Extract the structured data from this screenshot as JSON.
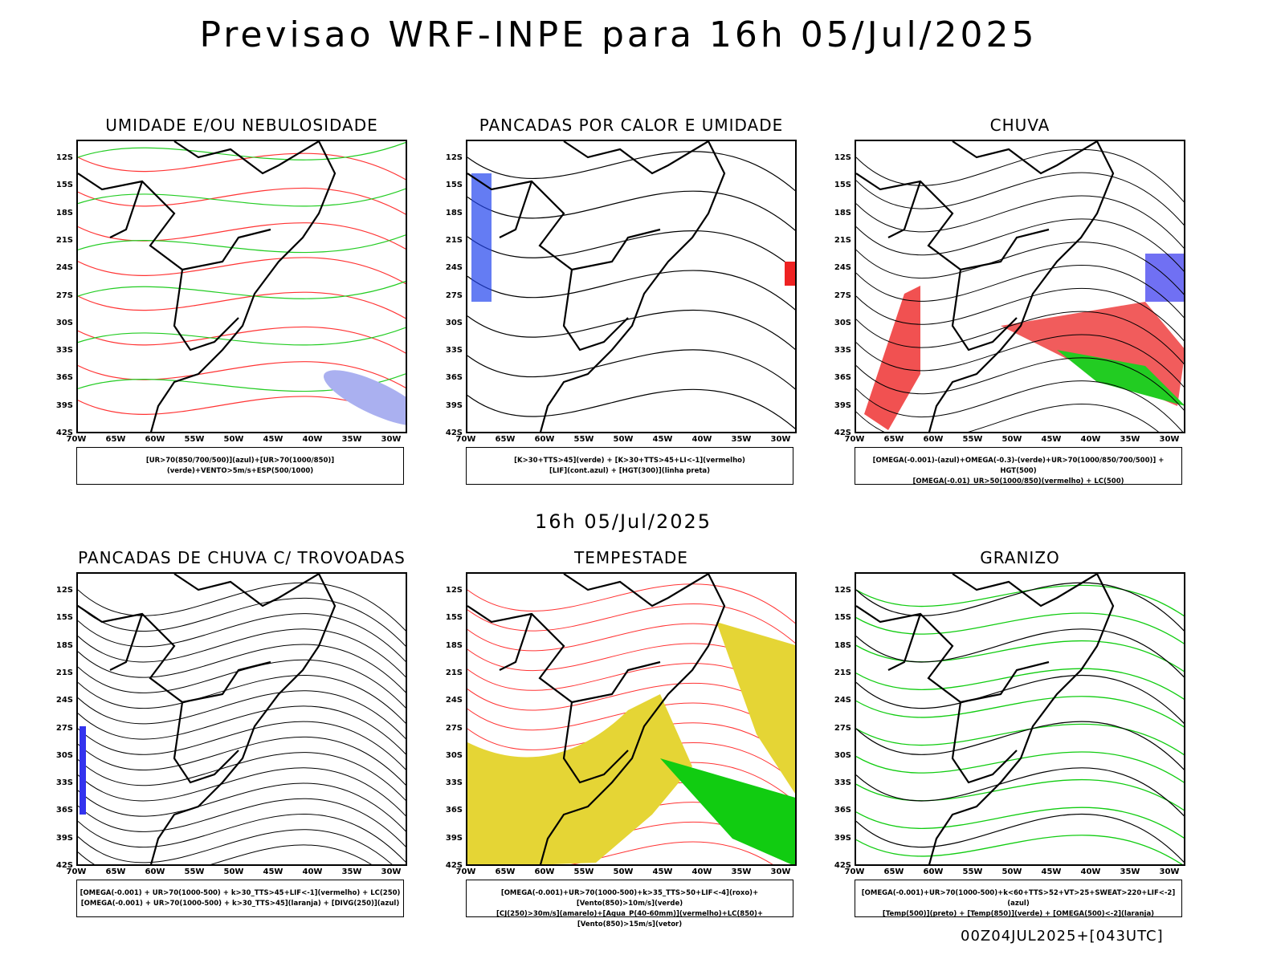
{
  "title": "Previsao WRF-INPE  para 16h 05/Jul/2025",
  "subtitle": "16h 05/Jul/2025",
  "footer": "00Z04JUL2025+[043UTC]",
  "lat_ticks": [
    "12S",
    "15S",
    "18S",
    "21S",
    "24S",
    "27S",
    "30S",
    "33S",
    "36S",
    "39S",
    "42S"
  ],
  "lon_ticks": [
    "70W",
    "65W",
    "60W",
    "55W",
    "50W",
    "45W",
    "40W",
    "35W",
    "30W"
  ],
  "panels": [
    {
      "title": "UMIDADE E/OU NEBULOSIDADE",
      "legend": [
        "[UR>70(850/700/500)](azul)+[UR>70(1000/850)](verde)+VENTO>5m/s+ESP(500/1000)"
      ],
      "style": "humidity"
    },
    {
      "title": "PANCADAS POR CALOR E UMIDADE",
      "legend": [
        "[K>30+TTS>45](verde) + [K>30+TTS>45+LI<-1](vermelho)",
        "[LIF](cont.azul) + [HGT(300)](linha preta)"
      ],
      "style": "heat"
    },
    {
      "title": "CHUVA",
      "legend": [
        "[OMEGA(-0.001)-(azul)+OMEGA(-0.3)-(verde)+UR>70(1000/850/700/500)] + HGT(500)",
        "[OMEGA(-0.01)_UR>50(1000/850)(vermelho) + LC(500)"
      ],
      "style": "rain"
    },
    {
      "title": "PANCADAS DE CHUVA C/ TROVOADAS",
      "legend": [
        "[OMEGA(-0.001) + UR>70(1000-500) + k>30_TTS>45+LIF<-1](vermelho) + LC(250)",
        "[OMEGA(-0.001) + UR>70(1000-500) + k>30_TTS>45](laranja) + [DIVG(250)](azul)"
      ],
      "style": "storm"
    },
    {
      "title": "TEMPESTADE",
      "legend": [
        "[OMEGA(-0.001)+UR>70(1000-500)+k>35_TTS>50+LIF<-4](roxo)+[Vento(850)>10m/s](verde)",
        "[CJ(250)>30m/s](amarelo)+[Agua_P(40-60mm)](vermelho)+LC(850)+[Vento(850)>15m/s](vetor)"
      ],
      "style": "tempest"
    },
    {
      "title": "GRANIZO",
      "legend": [
        "[OMEGA(-0.001)+UR>70(1000-500)+k<60+TTS>52+VT>25+SWEAT>220+LIF<-2](azul)",
        "[Temp(500)](preto) + [Temp(850)](verde) + [OMEGA(500)<-2](laranja)"
      ],
      "style": "hail"
    }
  ]
}
